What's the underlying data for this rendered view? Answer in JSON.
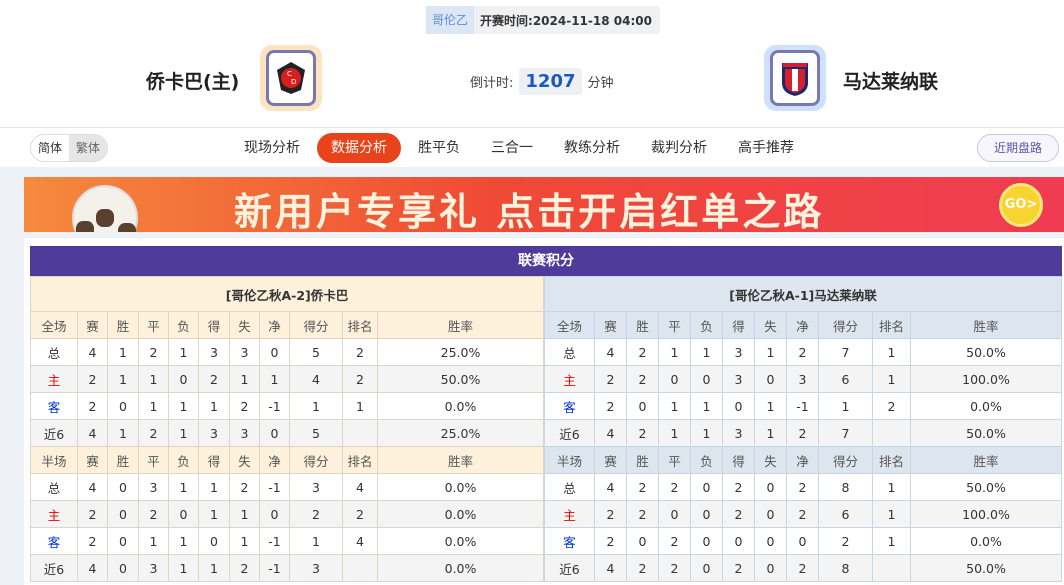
{
  "header": {
    "league": "哥伦乙",
    "kickoff_label": "开赛时间:",
    "kickoff": "2024-11-18 04:00",
    "home_team": "侨卡巴(主)",
    "away_team": "马达莱纳联",
    "countdown_label": "倒计时:",
    "countdown": "1207",
    "countdown_unit": "分钟"
  },
  "nav": {
    "lang": [
      "简体",
      "繁体"
    ],
    "tabs": [
      "现场分析",
      "数据分析",
      "胜平负",
      "三合一",
      "教练分析",
      "裁判分析",
      "高手推荐"
    ],
    "active_tab": "数据分析",
    "recent": "近期盘路"
  },
  "banner": {
    "text": "新用户专享礼 点击开启红单之路",
    "go": "GO>"
  },
  "colors": {
    "accent": "#e8431b",
    "title_bar": "#4f3c9a",
    "home": "#ee0000",
    "away": "#0033cc"
  },
  "standings": {
    "title": "联赛积分",
    "columns_full": [
      "全场",
      "赛",
      "胜",
      "平",
      "负",
      "得",
      "失",
      "净",
      "得分",
      "排名",
      "胜率"
    ],
    "columns_half": [
      "半场",
      "赛",
      "胜",
      "平",
      "负",
      "得",
      "失",
      "净",
      "得分",
      "排名",
      "胜率"
    ],
    "home": {
      "caption": "[哥伦乙秋A-2]侨卡巴",
      "full": [
        [
          "总",
          "4",
          "1",
          "2",
          "1",
          "3",
          "3",
          "0",
          "5",
          "2",
          "25.0%"
        ],
        [
          "主",
          "2",
          "1",
          "1",
          "0",
          "2",
          "1",
          "1",
          "4",
          "2",
          "50.0%"
        ],
        [
          "客",
          "2",
          "0",
          "1",
          "1",
          "1",
          "2",
          "-1",
          "1",
          "1",
          "0.0%"
        ],
        [
          "近6",
          "4",
          "1",
          "2",
          "1",
          "3",
          "3",
          "0",
          "5",
          "",
          "25.0%"
        ]
      ],
      "half": [
        [
          "总",
          "4",
          "0",
          "3",
          "1",
          "1",
          "2",
          "-1",
          "3",
          "4",
          "0.0%"
        ],
        [
          "主",
          "2",
          "0",
          "2",
          "0",
          "1",
          "1",
          "0",
          "2",
          "2",
          "0.0%"
        ],
        [
          "客",
          "2",
          "0",
          "1",
          "1",
          "0",
          "1",
          "-1",
          "1",
          "4",
          "0.0%"
        ],
        [
          "近6",
          "4",
          "0",
          "3",
          "1",
          "1",
          "2",
          "-1",
          "3",
          "",
          "0.0%"
        ]
      ]
    },
    "away": {
      "caption": "[哥伦乙秋A-1]马达莱纳联",
      "full": [
        [
          "总",
          "4",
          "2",
          "1",
          "1",
          "3",
          "1",
          "2",
          "7",
          "1",
          "50.0%"
        ],
        [
          "主",
          "2",
          "2",
          "0",
          "0",
          "3",
          "0",
          "3",
          "6",
          "1",
          "100.0%"
        ],
        [
          "客",
          "2",
          "0",
          "1",
          "1",
          "0",
          "1",
          "-1",
          "1",
          "2",
          "0.0%"
        ],
        [
          "近6",
          "4",
          "2",
          "1",
          "1",
          "3",
          "1",
          "2",
          "7",
          "",
          "50.0%"
        ]
      ],
      "half": [
        [
          "总",
          "4",
          "2",
          "2",
          "0",
          "2",
          "0",
          "2",
          "8",
          "1",
          "50.0%"
        ],
        [
          "主",
          "2",
          "2",
          "0",
          "0",
          "2",
          "0",
          "2",
          "6",
          "1",
          "100.0%"
        ],
        [
          "客",
          "2",
          "0",
          "2",
          "0",
          "0",
          "0",
          "0",
          "2",
          "1",
          "0.0%"
        ],
        [
          "近6",
          "4",
          "2",
          "2",
          "0",
          "2",
          "0",
          "2",
          "8",
          "",
          "50.0%"
        ]
      ]
    }
  }
}
